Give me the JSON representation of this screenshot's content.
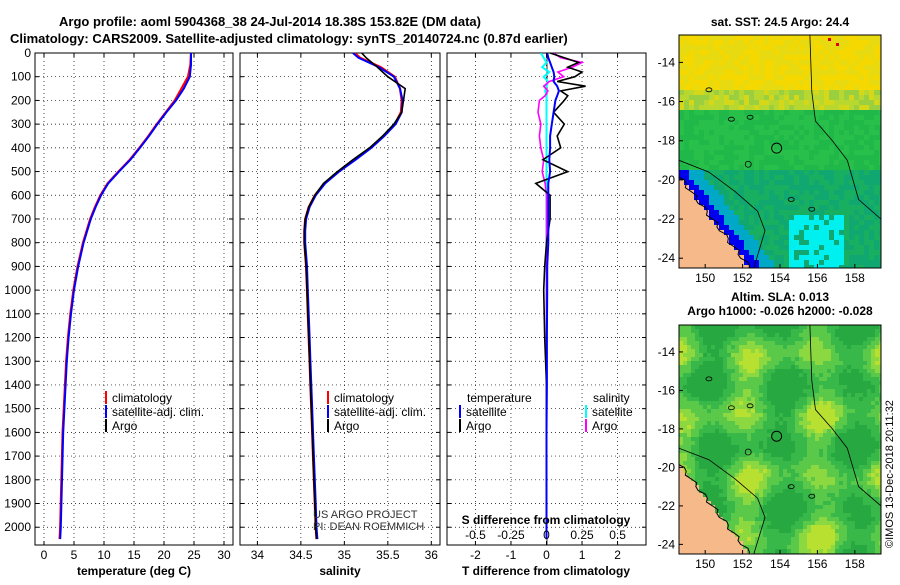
{
  "header": {
    "line1": "Argo profile: aoml 5904368_38 24-Jul-2014 18.38S 153.82E (DM data)",
    "line2": "Climatology: CARS2009. Satellite-adjusted climatology: synTS_20140724.nc (0.87d earlier)"
  },
  "colors": {
    "climatology": "#ff0000",
    "satellite": "#0000ff",
    "argo": "#000000",
    "sat_salinity": "#00ffff",
    "argo_salinity": "#ff00ff",
    "land": "#f5b98a"
  },
  "chart_data": [
    {
      "type": "line",
      "id": "temperature",
      "xlabel": "temperature (deg C)",
      "xlim": [
        -1.5,
        31.5
      ],
      "xticks": [
        0,
        5,
        10,
        15,
        20,
        25,
        30
      ],
      "ylim": [
        2075,
        0
      ],
      "yticks": [
        0,
        100,
        200,
        300,
        400,
        500,
        600,
        700,
        800,
        900,
        1000,
        1100,
        1200,
        1300,
        1400,
        1500,
        1600,
        1700,
        1800,
        1900,
        2000
      ],
      "legend": [
        "climatology",
        "satellite-adj. clim.",
        "Argo"
      ],
      "depth": [
        0,
        50,
        100,
        150,
        200,
        250,
        300,
        350,
        400,
        450,
        500,
        550,
        600,
        650,
        700,
        800,
        900,
        1000,
        1100,
        1200,
        1300,
        1400,
        1500,
        1600,
        1700,
        1800,
        1900,
        2000,
        2050
      ],
      "series": [
        {
          "name": "climatology",
          "values": [
            24.5,
            24.4,
            24.0,
            22.9,
            21.8,
            20.3,
            18.8,
            17.4,
            15.9,
            14.3,
            12.4,
            10.6,
            9.4,
            8.5,
            7.7,
            6.5,
            5.6,
            4.9,
            4.4,
            4.0,
            3.7,
            3.5,
            3.3,
            3.1,
            3.0,
            2.9,
            2.8,
            2.7,
            2.6
          ]
        },
        {
          "name": "satellite-adj. clim.",
          "values": [
            24.5,
            24.5,
            24.3,
            23.3,
            22.0,
            20.4,
            18.9,
            17.5,
            16.0,
            14.4,
            12.5,
            10.7,
            9.5,
            8.6,
            7.8,
            6.6,
            5.7,
            5.0,
            4.5,
            4.1,
            3.8,
            3.6,
            3.4,
            3.2,
            3.1,
            3.0,
            2.9,
            2.8,
            2.7
          ]
        }
      ]
    },
    {
      "type": "line",
      "id": "salinity",
      "xlabel": "salinity",
      "xlim": [
        33.8,
        36.1
      ],
      "xticks": [
        34,
        34.5,
        35,
        35.5,
        36
      ],
      "ylim": [
        2075,
        0
      ],
      "legend": [
        "climatology",
        "satellite-adj. clim.",
        "Argo"
      ],
      "depth": [
        0,
        20,
        60,
        100,
        150,
        200,
        250,
        300,
        350,
        400,
        450,
        500,
        550,
        600,
        650,
        700,
        750,
        800,
        850,
        900,
        1000,
        1100,
        1200,
        1300,
        1400,
        1500,
        1600,
        1700,
        1800,
        1900,
        2000,
        2050
      ],
      "series": [
        {
          "name": "climatology",
          "values": [
            35.12,
            35.18,
            35.42,
            35.58,
            35.64,
            35.66,
            35.65,
            35.58,
            35.45,
            35.3,
            35.12,
            34.93,
            34.77,
            34.66,
            34.59,
            34.55,
            34.54,
            34.54,
            34.55,
            34.56,
            34.57,
            34.58,
            34.59,
            34.6,
            34.61,
            34.62,
            34.63,
            34.64,
            34.65,
            34.66,
            34.67,
            34.68
          ]
        },
        {
          "name": "satellite-adj. clim.",
          "values": [
            35.1,
            35.16,
            35.4,
            35.57,
            35.64,
            35.67,
            35.66,
            35.59,
            35.46,
            35.31,
            35.13,
            34.94,
            34.78,
            34.67,
            34.6,
            34.56,
            34.55,
            34.55,
            34.56,
            34.57,
            34.58,
            34.59,
            34.6,
            34.61,
            34.62,
            34.63,
            34.64,
            34.65,
            34.66,
            34.67,
            34.68,
            34.69
          ]
        },
        {
          "name": "Argo",
          "values": [
            35.2,
            35.25,
            35.38,
            35.5,
            35.7,
            35.68,
            35.66,
            35.57,
            35.44,
            35.29,
            35.1,
            34.92,
            34.76,
            34.66,
            34.59,
            34.55,
            34.54,
            34.54,
            34.55,
            34.56,
            34.57,
            34.58,
            34.59,
            34.6,
            34.61,
            34.62,
            34.63,
            34.64,
            34.65,
            34.66,
            34.67,
            34.68
          ]
        }
      ],
      "annotations": [
        "US ARGO PROJECT",
        "PI: DEAN ROEMMICH"
      ]
    },
    {
      "type": "line",
      "id": "difference",
      "xlabel": "T difference from climatology",
      "xlabel_top": "S difference from climatology",
      "xlim": [
        -2.8,
        2.8
      ],
      "xticks": [
        -2,
        -1,
        0,
        1,
        2
      ],
      "xticklabels_bottom": [
        "-2",
        "-1",
        "0",
        "1",
        "2"
      ],
      "xticklabels_top": [
        "-0.5",
        "-0.25",
        "0",
        "0.25",
        "0.5"
      ],
      "ylim": [
        2075,
        0
      ],
      "legend_left_title": "temperature",
      "legend_right_title": "salinity",
      "legend": [
        "satellite",
        "Argo",
        "satellite",
        "Argo"
      ],
      "depth": [
        0,
        20,
        40,
        60,
        80,
        100,
        120,
        140,
        160,
        180,
        200,
        250,
        300,
        350,
        400,
        450,
        500,
        550,
        600,
        700,
        800,
        900,
        1000,
        1200,
        1400,
        1600,
        1800,
        2000,
        2050
      ],
      "series": [
        {
          "name": "T satellite",
          "values": [
            0.02,
            0.05,
            0.1,
            0.15,
            0.2,
            0.22,
            0.2,
            0.3,
            0.35,
            0.3,
            0.25,
            0.2,
            0.15,
            0.1,
            0.1,
            0.08,
            0.1,
            0.05,
            0.05,
            0.05,
            0.05,
            0.02,
            0.02,
            0.01,
            0.01,
            0.0,
            0.0,
            0.0,
            0.0
          ]
        },
        {
          "name": "T Argo",
          "values": [
            0.1,
            0.5,
            0.9,
            0.6,
            1.0,
            0.8,
            0.3,
            1.1,
            0.4,
            0.6,
            0.5,
            0.2,
            0.5,
            0.3,
            0.4,
            -0.1,
            0.6,
            -0.3,
            0.1,
            0.1,
            0.0,
            -0.05,
            -0.08,
            -0.05,
            0.0,
            0.0,
            0.0,
            0.0,
            0.0
          ]
        },
        {
          "name": "S satellite",
          "values": [
            -0.04,
            -0.02,
            0.0,
            -0.03,
            0.02,
            -0.02,
            0.01,
            0.0,
            -0.01,
            0.0,
            0.0,
            0.0,
            0.0,
            0.0,
            0.0,
            0.0,
            0.0,
            0.0,
            0.0,
            0.0,
            0.0,
            0.0,
            0.0,
            0.0,
            0.0,
            0.0,
            0.0,
            0.0,
            0.0
          ]
        },
        {
          "name": "S Argo",
          "values": [
            0.05,
            0.1,
            0.25,
            0.18,
            0.08,
            0.12,
            0.02,
            -0.02,
            0.01,
            -0.01,
            -0.05,
            -0.06,
            -0.04,
            -0.05,
            -0.04,
            -0.02,
            -0.03,
            -0.01,
            0.0,
            0.0,
            0.0,
            0.0,
            0.0,
            0.0,
            0.0,
            0.0,
            0.0,
            0.0,
            0.0
          ]
        }
      ]
    },
    {
      "type": "heatmap",
      "id": "sst_map",
      "title": "sat. SST: 24.5 Argo: 24.4",
      "xlim": [
        148.6,
        159.4
      ],
      "ylim": [
        -24.5,
        -12.6
      ],
      "xticks": [
        150,
        152,
        154,
        156,
        158
      ],
      "yticks": [
        -14,
        -16,
        -18,
        -20,
        -22,
        -24
      ],
      "float_position": {
        "lon": 153.82,
        "lat": -18.38
      }
    },
    {
      "type": "heatmap",
      "id": "sla_map",
      "title_line1": "Altim. SLA: 0.013",
      "title_line2": "Argo h1000: -0.026 h2000: -0.028",
      "xlim": [
        148.6,
        159.4
      ],
      "ylim": [
        -24.5,
        -12.6
      ],
      "xticks": [
        150,
        152,
        154,
        156,
        158
      ],
      "yticks": [
        -14,
        -16,
        -18,
        -20,
        -22,
        -24
      ],
      "float_position": {
        "lon": 153.82,
        "lat": -18.38
      }
    }
  ],
  "footer": {
    "timestamp": "©IMOS 13-Dec-2018 20:11:32"
  }
}
